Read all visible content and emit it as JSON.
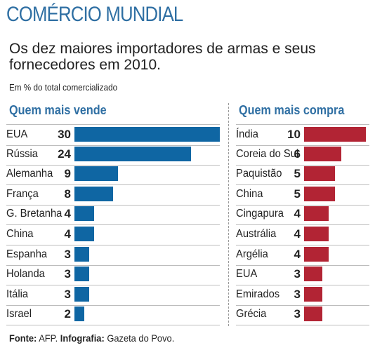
{
  "header": {
    "title": "COMÉRCIO MUNDIAL",
    "subtitle": "Os dez maiores importadores de armas e seus fornecedores em 2010.",
    "unit": "Em % do total comercializado"
  },
  "source": {
    "fonte_label": "Fonte:",
    "fonte_value": "AFP.",
    "infografia_label": "Infografia:",
    "infografia_value": "Gazeta do Povo."
  },
  "colors": {
    "sell": "#0f66a3",
    "buy": "#b22434",
    "accent": "#2f6fa3"
  },
  "chart_data": [
    {
      "type": "bar",
      "title": "Quem mais vende",
      "categories": [
        "EUA",
        "Rússia",
        "Alemanha",
        "França",
        "G. Bretanha",
        "China",
        "Espanha",
        "Holanda",
        "Itália",
        "Israel"
      ],
      "values": [
        30,
        24,
        9,
        8,
        4,
        4,
        3,
        3,
        3,
        2
      ],
      "xlim": [
        0,
        30
      ],
      "orientation": "horizontal",
      "grid": false
    },
    {
      "type": "bar",
      "title": "Quem mais compra",
      "categories": [
        "Índia",
        "Coreia do Sul",
        "Paquistão",
        "China",
        "Cingapura",
        "Austrália",
        "Argélia",
        "EUA",
        "Emirados",
        "Grécia"
      ],
      "values": [
        10,
        6,
        5,
        5,
        4,
        4,
        4,
        3,
        3,
        3
      ],
      "xlim": [
        0,
        10
      ],
      "orientation": "horizontal",
      "grid": false
    }
  ]
}
